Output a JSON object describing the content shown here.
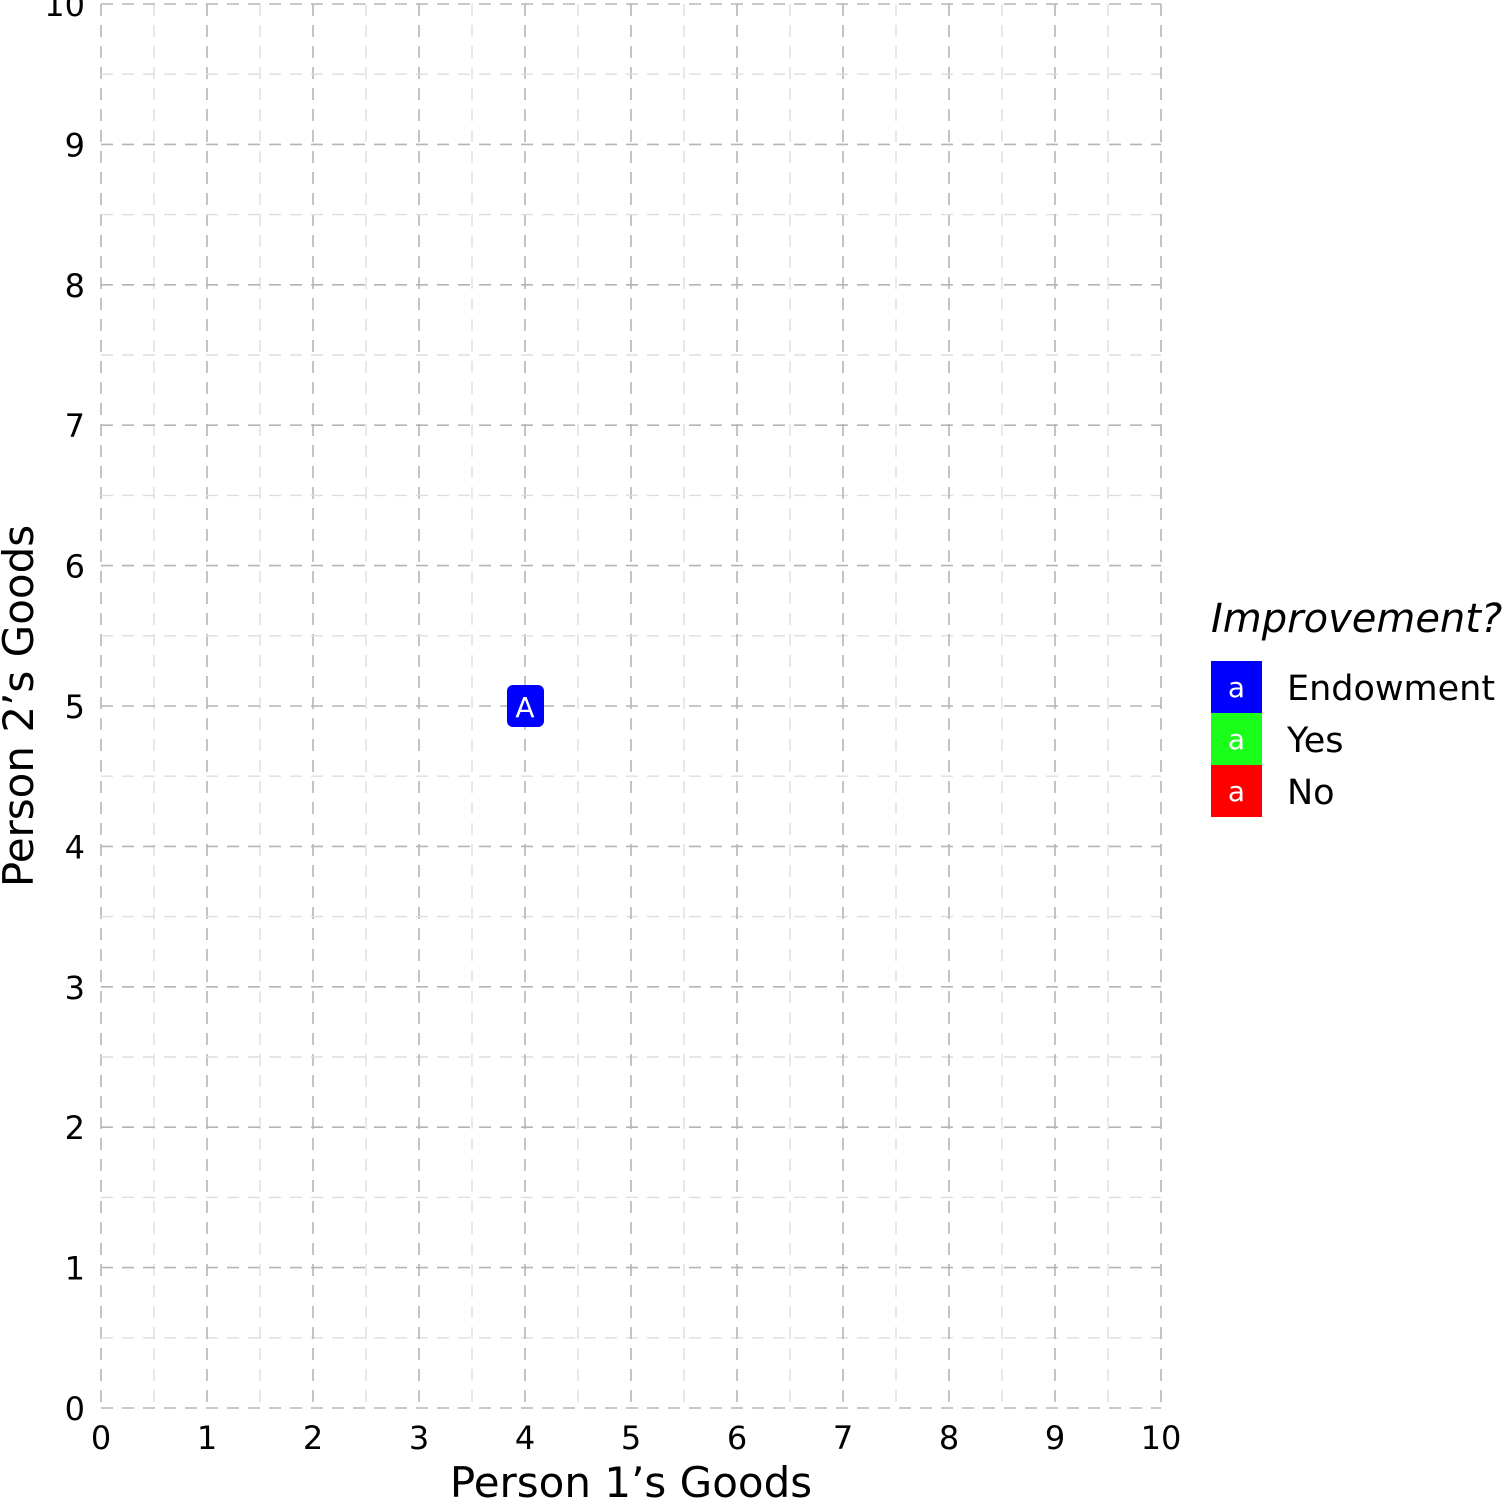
{
  "chart_data": {
    "type": "scatter",
    "title": "",
    "xlabel": "Person 1’s Goods",
    "ylabel": "Person 2’s Goods",
    "xlim": [
      0,
      10
    ],
    "ylim": [
      0,
      10
    ],
    "x_ticks": [
      "0",
      "1",
      "2",
      "3",
      "4",
      "5",
      "6",
      "7",
      "8",
      "9",
      "10"
    ],
    "y_ticks": [
      "0",
      "1",
      "2",
      "3",
      "4",
      "5",
      "6",
      "7",
      "8",
      "9",
      "10"
    ],
    "grid": true,
    "grid_style": "dashed",
    "points": [
      {
        "label": "A",
        "x": 4,
        "y": 5,
        "category": "Endowment"
      }
    ],
    "legend": {
      "title": "Improvement?",
      "placement": "right",
      "key_glyph": "a",
      "entries": [
        {
          "name": "Endowment",
          "color": "#0000ff"
        },
        {
          "name": "Yes",
          "color": "#1aff1a"
        },
        {
          "name": "No",
          "color": "#ff0000"
        }
      ]
    }
  }
}
